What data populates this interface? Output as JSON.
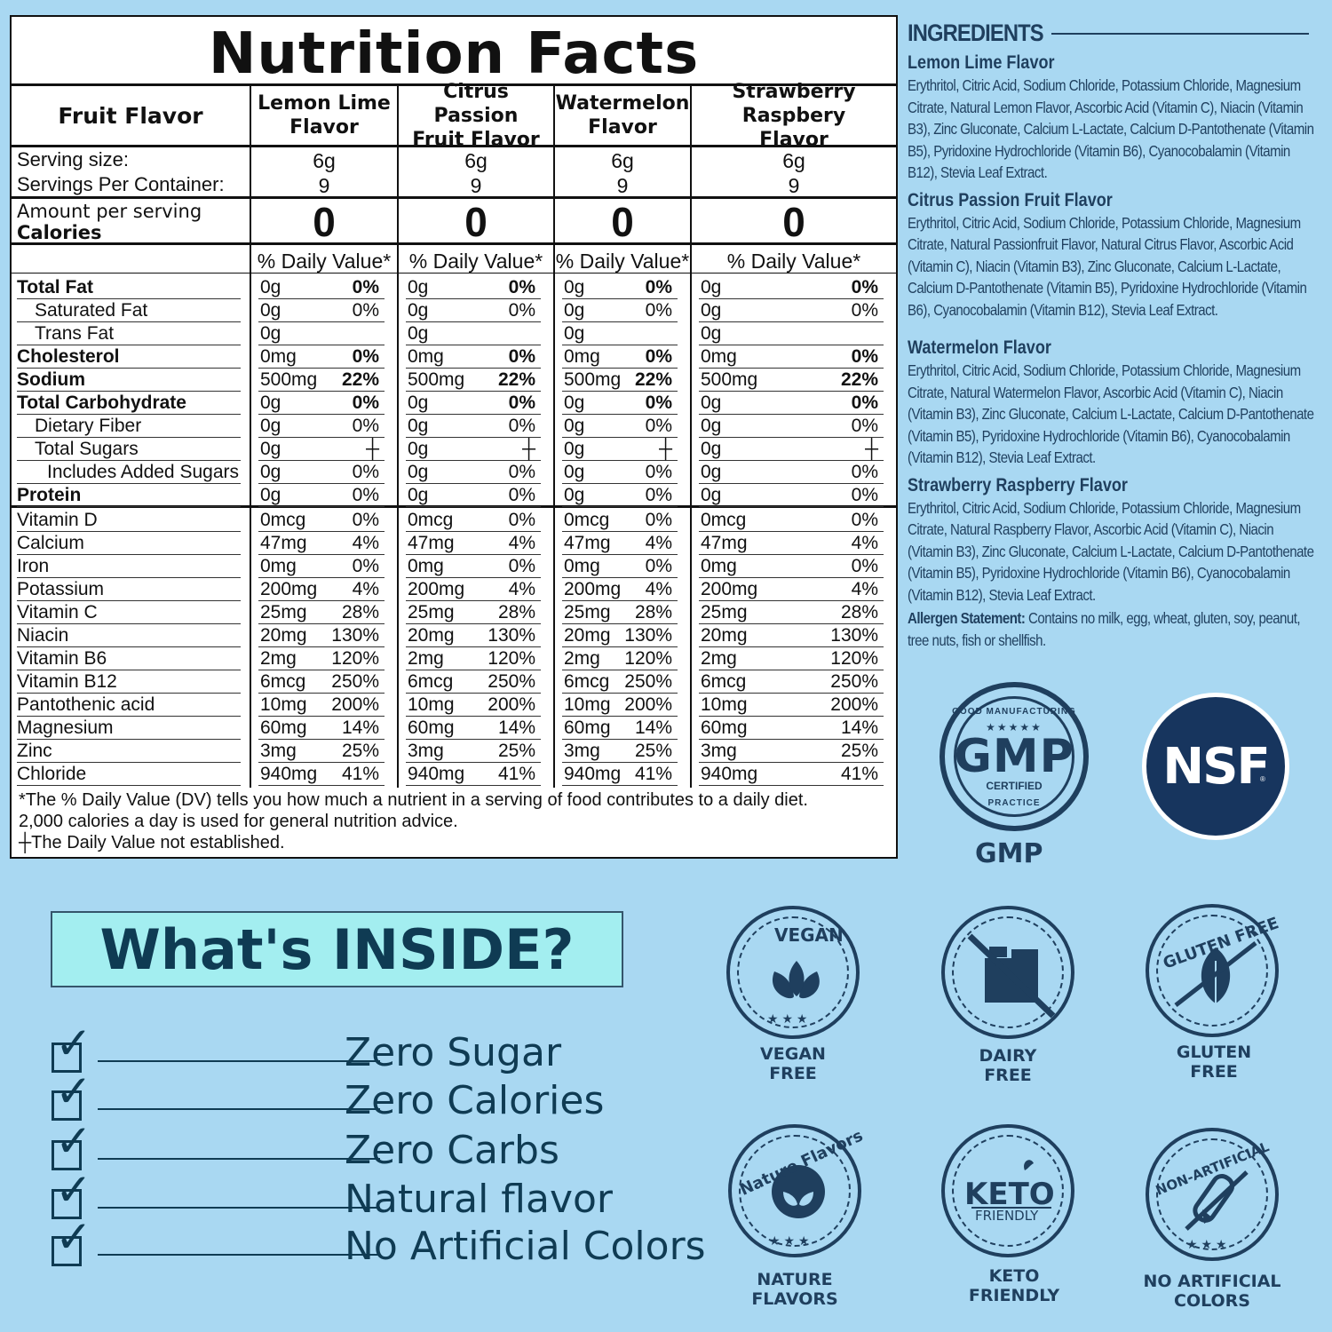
{
  "nutrition": {
    "title": "Nutrition Facts",
    "header_label": "Fruit Flavor",
    "flavors": [
      {
        "line1": "Lemon Lime",
        "line2": "Flavor"
      },
      {
        "line1": "Citrus Passion",
        "line2": "Fruit Flavor"
      },
      {
        "line1": "Watermelon",
        "line2": "Flavor"
      },
      {
        "line1": "Strawberry Raspbery",
        "line2": "Flavor"
      }
    ],
    "serving_size_label": "Serving size:",
    "servings_per_container_label": "Servings Per Container:",
    "serving_size": "6g",
    "servings_per_container": "9",
    "amount_per_serving_label": "Amount per serving",
    "calories_label": "Calories",
    "calories": "0",
    "daily_value_header": "% Daily Value*",
    "nutrients": [
      {
        "name": "Total Fat",
        "style": "b",
        "amount": "0g",
        "dv": "0%",
        "dv_bold": true
      },
      {
        "name": "Saturated Fat",
        "style": "ind1",
        "amount": "0g",
        "dv": "0%",
        "dv_bold": false
      },
      {
        "name": "Trans Fat",
        "style": "ind1",
        "amount": "0g",
        "dv": "",
        "dv_bold": false
      },
      {
        "name": "Cholesterol",
        "style": "b",
        "amount": "0mg",
        "dv": "0%",
        "dv_bold": true
      },
      {
        "name": "Sodium",
        "style": "b",
        "amount": "500mg",
        "dv": "22%",
        "dv_bold": true
      },
      {
        "name": "Total Carbohydrate",
        "style": "b",
        "amount": "0g",
        "dv": "0%",
        "dv_bold": true
      },
      {
        "name": "Dietary Fiber",
        "style": "ind1",
        "amount": "0g",
        "dv": "0%",
        "dv_bold": false
      },
      {
        "name": "Total Sugars",
        "style": "ind1",
        "amount": "0g",
        "dv": "┼",
        "dv_bold": false
      },
      {
        "name": "Includes Added Sugars",
        "style": "ind2",
        "amount": "0g",
        "dv": "0%",
        "dv_bold": false
      },
      {
        "name": "Protein",
        "style": "b",
        "amount": "0g",
        "dv": "0%",
        "dv_bold": false
      }
    ],
    "vitamins": [
      {
        "name": "Vitamin D",
        "amount": "0mcg",
        "dv": "0%"
      },
      {
        "name": "Calcium",
        "amount": "47mg",
        "dv": "4%"
      },
      {
        "name": "Iron",
        "amount": "0mg",
        "dv": "0%"
      },
      {
        "name": "Potassium",
        "amount": "200mg",
        "dv": "4%"
      },
      {
        "name": "Vitamin C",
        "amount": "25mg",
        "dv": "28%"
      },
      {
        "name": "Niacin",
        "amount": "20mg",
        "dv": "130%"
      },
      {
        "name": "Vitamin B6",
        "amount": "2mg",
        "dv": "120%"
      },
      {
        "name": "Vitamin B12",
        "amount": "6mcg",
        "dv": "250%"
      },
      {
        "name": "Pantothenic acid",
        "amount": "10mg",
        "dv": "200%"
      },
      {
        "name": "Magnesium",
        "amount": "60mg",
        "dv": "14%"
      },
      {
        "name": "Zinc",
        "amount": "3mg",
        "dv": "25%"
      },
      {
        "name": "Chloride",
        "amount": "940mg",
        "dv": "41%"
      }
    ],
    "footnote1": "*The % Daily Value (DV) tells you how much a nutrient in a serving of food contributes to a daily diet.",
    "footnote2": "2,000 calories a day is used for general nutrition advice.",
    "footnote3": "┼The Daily Value not established."
  },
  "ingredients": {
    "title": "INGREDIENTS",
    "blocks": [
      {
        "heading": "Lemon Lime Flavor",
        "text": "Erythritol, Citric Acid, Sodium Chloride, Potassium Chloride, Magnesium Citrate, Natural Lemon Flavor, Ascorbic Acid (Vitamin C), Niacin (Vitamin B3), Zinc Gluconate, Calcium L-Lactate, Calcium D-Pantothenate (Vitamin B5), Pyridoxine Hydrochloride (Vitamin B6), Cyanocobalamin (Vitamin B12), Stevia Leaf Extract."
      },
      {
        "heading": "Citrus Passion Fruit Flavor",
        "text": "Erythritol, Citric Acid, Sodium Chloride, Potassium Chloride, Magnesium Citrate, Natural Passionfruit Flavor, Natural Citrus Flavor, Ascorbic Acid (Vitamin C), Niacin (Vitamin B3), Zinc Gluconate, Calcium L-Lactate, Calcium D-Pantothenate (Vitamin B5), Pyridoxine Hydrochloride (Vitamin B6), Cyanocobalamin (Vitamin B12), Stevia Leaf Extract."
      },
      {
        "heading": "Watermelon Flavor",
        "text": "Erythritol, Citric Acid, Sodium Chloride, Potassium Chloride, Magnesium Citrate, Natural Watermelon Flavor, Ascorbic Acid (Vitamin C), Niacin (Vitamin B3), Zinc Gluconate, Calcium L-Lactate, Calcium D-Pantothenate (Vitamin B5), Pyridoxine Hydrochloride (Vitamin B6), Cyanocobalamin (Vitamin B12), Stevia Leaf Extract."
      },
      {
        "heading": "Strawberry Raspberry Flavor",
        "text": "Erythritol, Citric Acid, Sodium Chloride, Potassium Chloride, Magnesium Citrate, Natural Raspberry Flavor, Ascorbic Acid (Vitamin C), Niacin (Vitamin B3), Zinc Gluconate, Calcium L-Lactate, Calcium D-Pantothenate (Vitamin B5), Pyridoxine Hydrochloride (Vitamin B6), Cyanocobalamin (Vitamin B12), Stevia Leaf Extract."
      }
    ],
    "allergen_label": "Allergen Statement:",
    "allergen_text": " Contains no milk, egg, wheat, gluten, soy, peanut, tree nuts, fish or shellfish."
  },
  "certifications": {
    "gmp_top": "GOOD MANUFACTURING",
    "gmp_stars": "★★★★★",
    "gmp_big": "GMP",
    "gmp_certified": "CERTIFIED",
    "gmp_bottom": "PRACTICE",
    "gmp_label": "GMP",
    "nsf": "NSF",
    "nsf_mark": "®"
  },
  "whats_inside": {
    "title": "What's INSIDE?",
    "items": [
      "Zero Sugar",
      "Zero Calories",
      "Zero Carbs",
      "Natural flavor",
      "No Artificial Colors"
    ]
  },
  "features": [
    {
      "badge_text": "VEGAN",
      "line1": "VEGAN",
      "line2": "FREE"
    },
    {
      "badge_text": "",
      "line1": "DAIRY",
      "line2": "FREE"
    },
    {
      "badge_text": "GLUTEN FREE",
      "line1": "GLUTEN",
      "line2": "FREE"
    },
    {
      "badge_text": "Nature Flavors",
      "line1": "NATURE",
      "line2": "FLAVORS"
    },
    {
      "badge_text": "KETO",
      "badge_sub": "FRIENDLY",
      "line1": "KETO",
      "line2": "FRIENDLY"
    },
    {
      "badge_text": "NON-ARTIFICIAL",
      "line1": "NO ARTIFICIAL",
      "line2": "COLORS"
    }
  ],
  "colors": {
    "background": "#a9d8f2",
    "navy": "#1f3f5e",
    "teal_box": "#a3eef0",
    "nsf_blue": "#17355e"
  }
}
